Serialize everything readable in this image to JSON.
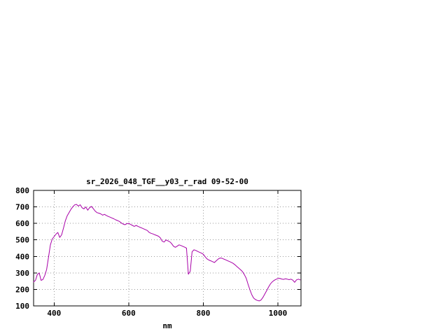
{
  "window": {
    "background_color": "#ffffff"
  },
  "chart_data": {
    "type": "line",
    "title": "sr_2026_048_TGF__y03_r_rad 09-52-00",
    "xlabel": "nm",
    "ylabel": "",
    "xlim": [
      345,
      1062
    ],
    "ylim": [
      100,
      800
    ],
    "x_ticks": [
      400,
      600,
      800,
      1000
    ],
    "y_ticks": [
      100,
      200,
      300,
      400,
      500,
      600,
      700,
      800
    ],
    "grid": true,
    "legend": "none",
    "colors": {
      "line": "#a800a8",
      "grid": "#9a9a9a",
      "axis": "#000000",
      "text": "#000000"
    },
    "x": [
      345,
      350,
      355,
      360,
      365,
      370,
      375,
      380,
      385,
      390,
      395,
      400,
      405,
      410,
      415,
      420,
      425,
      430,
      435,
      440,
      445,
      450,
      455,
      460,
      465,
      470,
      475,
      480,
      485,
      490,
      495,
      500,
      505,
      510,
      515,
      520,
      525,
      530,
      535,
      540,
      545,
      550,
      555,
      560,
      565,
      570,
      575,
      580,
      585,
      590,
      595,
      600,
      605,
      610,
      615,
      620,
      625,
      630,
      635,
      640,
      645,
      650,
      655,
      660,
      665,
      670,
      675,
      680,
      685,
      690,
      695,
      700,
      705,
      710,
      715,
      720,
      725,
      730,
      735,
      740,
      745,
      750,
      755,
      760,
      765,
      770,
      775,
      780,
      785,
      790,
      795,
      800,
      805,
      810,
      815,
      820,
      825,
      830,
      835,
      840,
      845,
      850,
      855,
      860,
      865,
      870,
      875,
      880,
      885,
      890,
      895,
      900,
      905,
      910,
      915,
      920,
      925,
      930,
      935,
      940,
      945,
      950,
      955,
      960,
      965,
      970,
      975,
      980,
      985,
      990,
      995,
      1000,
      1005,
      1010,
      1015,
      1020,
      1025,
      1030,
      1035,
      1040,
      1045,
      1050,
      1055,
      1060
    ],
    "y": [
      245,
      255,
      290,
      300,
      255,
      260,
      285,
      320,
      395,
      470,
      505,
      520,
      535,
      545,
      515,
      530,
      570,
      615,
      645,
      665,
      685,
      700,
      712,
      715,
      705,
      713,
      695,
      688,
      700,
      680,
      695,
      703,
      690,
      675,
      665,
      662,
      658,
      650,
      655,
      648,
      642,
      638,
      633,
      628,
      622,
      617,
      612,
      603,
      596,
      592,
      598,
      600,
      594,
      588,
      582,
      588,
      582,
      577,
      572,
      567,
      562,
      557,
      545,
      540,
      536,
      531,
      527,
      522,
      512,
      492,
      487,
      500,
      494,
      489,
      478,
      462,
      455,
      462,
      470,
      466,
      461,
      456,
      450,
      292,
      310,
      428,
      440,
      436,
      430,
      425,
      420,
      413,
      398,
      385,
      378,
      373,
      368,
      363,
      374,
      384,
      390,
      389,
      384,
      379,
      374,
      369,
      364,
      358,
      349,
      339,
      329,
      319,
      308,
      290,
      268,
      232,
      198,
      168,
      148,
      138,
      133,
      130,
      136,
      152,
      172,
      193,
      214,
      233,
      246,
      255,
      261,
      266,
      267,
      263,
      261,
      264,
      262,
      259,
      262,
      256,
      243,
      258,
      262,
      258
    ]
  }
}
